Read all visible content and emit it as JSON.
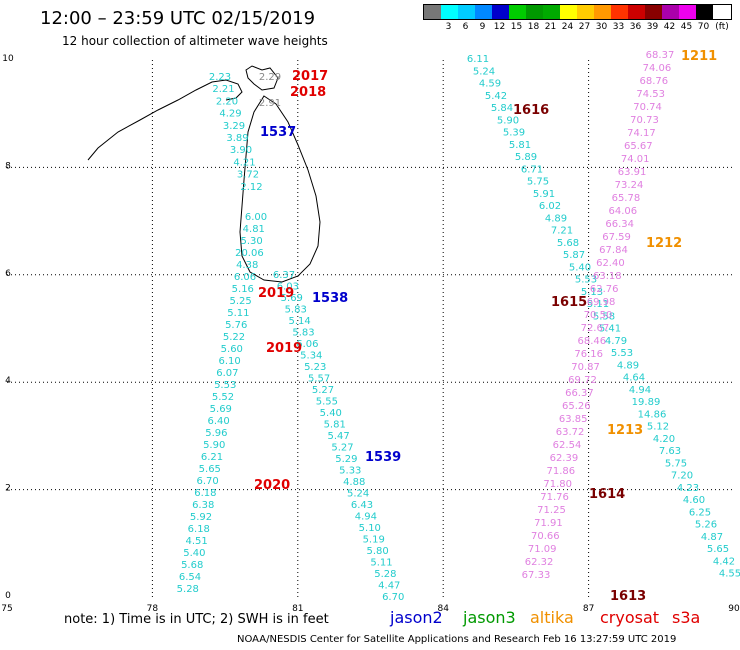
{
  "header": {
    "title": "12:00 – 23:59 UTC 02/15/2019",
    "subtitle": "12 hour collection of altimeter wave heights"
  },
  "legend": {
    "colors": [
      "#777777",
      "#00ffff",
      "#00ccff",
      "#0088ff",
      "#0000cc",
      "#00cc00",
      "#009900",
      "#00aa00",
      "#ffff00",
      "#ffcc00",
      "#ff9900",
      "#ff3300",
      "#cc0000",
      "#880000",
      "#aa00aa",
      "#ee00ee",
      "#000000"
    ],
    "labels": [
      "",
      "3",
      "6",
      "9",
      "12",
      "15",
      "18",
      "21",
      "24",
      "27",
      "30",
      "33",
      "36",
      "39",
      "42",
      "45",
      "70",
      "(ft)"
    ]
  },
  "axes": {
    "x_ticks": [
      "75",
      "78",
      "81",
      "84",
      "87",
      "90"
    ],
    "y_ticks": [
      "0",
      "2",
      "4",
      "6",
      "8",
      "10"
    ]
  },
  "passes": [
    {
      "label": "2017",
      "color": "#e00000"
    },
    {
      "label": "2018",
      "color": "#e00000"
    },
    {
      "label": "1537",
      "color": "#0000cc"
    },
    {
      "label": "1616",
      "color": "#7a0000"
    },
    {
      "label": "1211",
      "color": "#f09000"
    },
    {
      "label": "1212",
      "color": "#f09000"
    },
    {
      "label": "2019",
      "color": "#e00000"
    },
    {
      "label": "1538",
      "color": "#0000cc"
    },
    {
      "label": "1615",
      "color": "#7a0000"
    },
    {
      "label": "2019",
      "color": "#e00000"
    },
    {
      "label": "1213",
      "color": "#f09000"
    },
    {
      "label": "1539",
      "color": "#0000cc"
    },
    {
      "label": "2020",
      "color": "#e00000"
    },
    {
      "label": "1614",
      "color": "#7a0000"
    },
    {
      "label": "1613",
      "color": "#7a0000"
    }
  ],
  "tracks": {
    "t1537": {
      "color": "#22cccc",
      "values": [
        "2.23",
        "2.21",
        "2.20",
        "4.29",
        "3.29",
        "3.89",
        "3.90",
        "4.21",
        "3.72",
        "2.12"
      ]
    },
    "t2017": {
      "color": "#888888",
      "values": [
        "2.29",
        "2.91"
      ]
    },
    "t1616": {
      "color": "#22cccc",
      "values": [
        "6.11",
        "5.24",
        "4.59",
        "5.42",
        "5.84",
        "5.90",
        "5.39",
        "5.81",
        "5.89",
        "6.71",
        "5.75",
        "5.91",
        "6.02",
        "4.89",
        "7.21",
        "5.68",
        "5.87",
        "5.40",
        "5.53",
        "5.13",
        "5.11",
        "5.58",
        "5.41",
        "4.79",
        "5.53",
        "4.89",
        "4.64",
        "4.94",
        "19.89",
        "14.86",
        "5.12",
        "4.20",
        "7.63",
        "5.75",
        "7.20",
        "4.23",
        "4.60",
        "6.25",
        "5.26",
        "4.87",
        "5.65",
        "4.42",
        "4.55"
      ]
    },
    "t1211": {
      "color": "#e080e0",
      "values": [
        "68.37",
        "74.06",
        "68.76",
        "74.53",
        "70.74",
        "70.73",
        "74.17",
        "65.67",
        "74.01",
        "63.91",
        "73.24",
        "65.78",
        "64.06",
        "66.34",
        "67.59",
        "67.84",
        "62.40",
        "63.18",
        "62.76",
        "69.98",
        "70.50",
        "72.67",
        "68.46",
        "76.16",
        "70.87",
        "69.72",
        "66.37",
        "65.26",
        "63.85",
        "63.72",
        "62.54",
        "62.39",
        "71.86",
        "71.80",
        "71.76",
        "71.25",
        "71.91",
        "70.66",
        "71.09",
        "62.32",
        "67.33"
      ]
    },
    "t1538": {
      "color": "#22cccc",
      "values": [
        "6.00",
        "4.81",
        "5.30",
        "20.06",
        "4.38",
        "6.06",
        "5.16",
        "5.25",
        "5.11",
        "5.76",
        "5.22",
        "5.60",
        "6.10",
        "6.07",
        "5.53",
        "5.52",
        "5.69",
        "6.40",
        "5.96",
        "5.90",
        "6.21",
        "5.65",
        "6.70",
        "6.18",
        "6.38",
        "5.92",
        "6.18",
        "4.51",
        "5.40",
        "5.68",
        "6.54",
        "5.28"
      ]
    },
    "t1539": {
      "color": "#22cccc",
      "values": [
        "6.37",
        "6.03",
        "5.69",
        "5.83",
        "5.14",
        "5.83",
        "6.06",
        "5.34",
        "5.23",
        "5.57",
        "5.27",
        "5.55",
        "5.40",
        "5.81",
        "5.47",
        "5.27",
        "5.29",
        "5.33",
        "4.88",
        "5.24",
        "6.43",
        "4.94",
        "5.10",
        "5.19",
        "5.80",
        "5.11",
        "5.28",
        "4.47",
        "6.70"
      ]
    }
  },
  "footer": {
    "note": "note: 1) Time is in UTC; 2) SWH is in feet",
    "satellites": [
      {
        "name": "jason2",
        "color": "#0000cc"
      },
      {
        "name": "jason3",
        "color": "#009900"
      },
      {
        "name": "altika",
        "color": "#f09000"
      },
      {
        "name": "cryosat",
        "color": "#e00000"
      },
      {
        "name": "s3a",
        "color": "#e00000"
      }
    ],
    "credit": "NOAA/NESDIS Center for Satellite Applications and Research    Feb 16 13:27:59 UTC 2019"
  }
}
